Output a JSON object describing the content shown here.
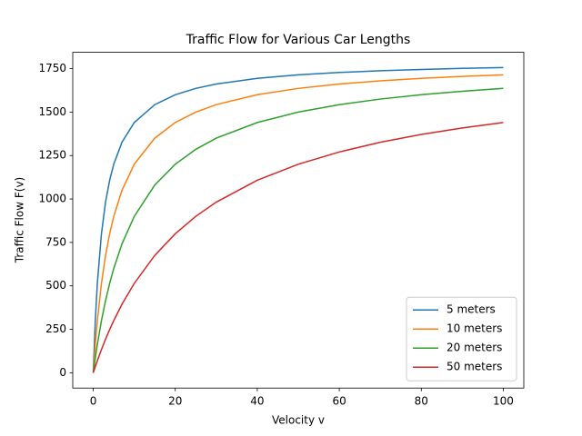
{
  "chart_data": {
    "type": "line",
    "title": "Traffic Flow for Various Car Lengths",
    "xlabel": "Velocity v",
    "ylabel": "Traffic Flow F(v)",
    "x": [
      0,
      0.5,
      1,
      2,
      3,
      4,
      5,
      7,
      10,
      15,
      20,
      25,
      30,
      40,
      50,
      60,
      70,
      80,
      90,
      100
    ],
    "series": [
      {
        "name": "5 meters",
        "color": "#1f77b4",
        "values": [
          0,
          300,
          514.3,
          800,
          981.8,
          1107.7,
          1200,
          1326.3,
          1440,
          1542.9,
          1600,
          1636.4,
          1661.5,
          1694.1,
          1714.3,
          1728,
          1737.9,
          1745.5,
          1751.4,
          1756.1
        ]
      },
      {
        "name": "10 meters",
        "color": "#ff7f0e",
        "values": [
          0,
          163.6,
          300,
          514.3,
          675,
          800,
          900,
          1050,
          1200,
          1350,
          1440,
          1500,
          1542.9,
          1600,
          1636.4,
          1661.5,
          1680,
          1694.1,
          1705.3,
          1714.3
        ]
      },
      {
        "name": "20 meters",
        "color": "#2ca02c",
        "values": [
          0,
          85.7,
          163.6,
          300,
          415.4,
          514.3,
          600,
          741.2,
          900,
          1080,
          1200,
          1285.7,
          1350,
          1440,
          1500,
          1542.9,
          1575,
          1600,
          1620,
          1636.4
        ]
      },
      {
        "name": "50 meters",
        "color": "#d62728",
        "values": [
          0,
          35.3,
          69.2,
          133.3,
          192.9,
          248.3,
          300,
          393.8,
          514.3,
          675,
          800,
          900,
          981.8,
          1107.7,
          1200,
          1270.6,
          1326.3,
          1371.4,
          1408.7,
          1440
        ]
      }
    ],
    "xlim": [
      -5,
      105
    ],
    "xticks": [
      0,
      20,
      40,
      60,
      80,
      100
    ],
    "ylim": [
      -88,
      1844
    ],
    "yticks": [
      0,
      250,
      500,
      750,
      1000,
      1250,
      1500,
      1750
    ],
    "legend": "lower right"
  }
}
